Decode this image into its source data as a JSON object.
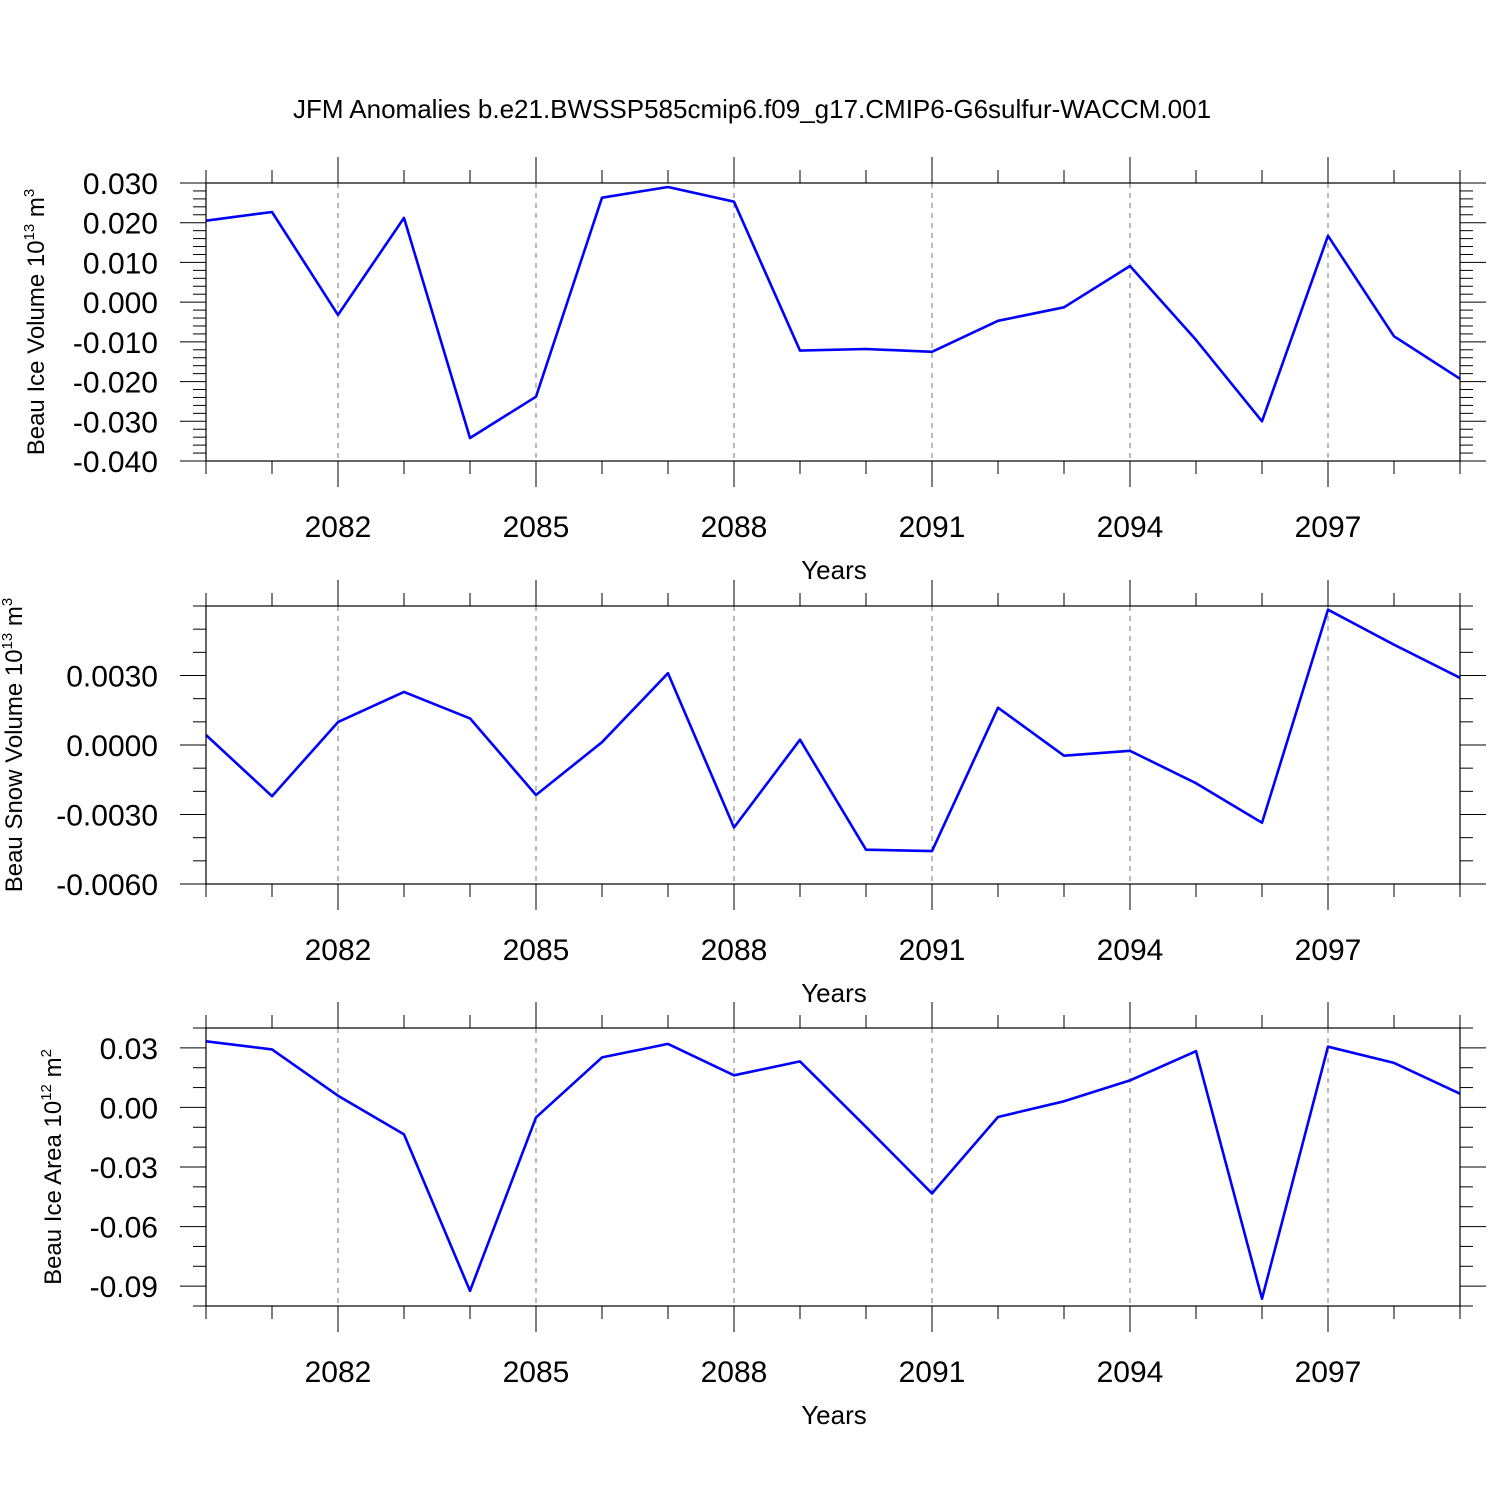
{
  "title": "JFM Anomalies b.e21.BWSSP585cmip6.f09_g17.CMIP6-G6sulfur-WACCM.001",
  "line_color": "#0000ff",
  "chart_data": [
    {
      "type": "line",
      "x": [
        2080,
        2081,
        2082,
        2083,
        2084,
        2085,
        2086,
        2087,
        2088,
        2089,
        2090,
        2091,
        2092,
        2093,
        2094,
        2095,
        2096,
        2097,
        2098,
        2099
      ],
      "values": [
        0.0205,
        0.0227,
        -0.0032,
        0.0212,
        -0.0342,
        -0.0238,
        0.0263,
        0.029,
        0.0253,
        -0.0122,
        -0.0118,
        -0.0125,
        -0.0047,
        -0.0013,
        0.0091,
        -0.0095,
        -0.03,
        0.0167,
        -0.0086,
        -0.0193
      ],
      "xlabel": "Years",
      "ylabel": "Beau Ice Volume 10",
      "ylabel_sup": "13",
      "ylabel_unit": "m",
      "ylabel_unit_sup": "3",
      "xlim": [
        2080,
        2099
      ],
      "ylim": [
        -0.04,
        0.03
      ],
      "yticks": [
        -0.04,
        -0.03,
        -0.02,
        -0.01,
        0.0,
        0.01,
        0.02,
        0.03
      ],
      "ytick_labels": [
        "-0.040",
        "-0.030",
        "-0.020",
        "-0.010",
        "0.000",
        "0.010",
        "0.020",
        "0.030"
      ],
      "yminor_step": 0.002,
      "xticks": [
        2082,
        2085,
        2088,
        2091,
        2094,
        2097
      ],
      "xtick_labels": [
        "2082",
        "2085",
        "2088",
        "2091",
        "2094",
        "2097"
      ],
      "grid": "vertical dashed at major x ticks"
    },
    {
      "type": "line",
      "x": [
        2080,
        2081,
        2082,
        2083,
        2084,
        2085,
        2086,
        2087,
        2088,
        2089,
        2090,
        2091,
        2092,
        2093,
        2094,
        2095,
        2096,
        2097,
        2098,
        2099
      ],
      "values": [
        0.00043,
        -0.00221,
        0.00099,
        0.00229,
        0.00115,
        -0.00216,
        0.00012,
        0.0031,
        -0.00356,
        0.00023,
        -0.00452,
        -0.00458,
        0.00161,
        -0.00046,
        -0.00025,
        -0.00165,
        -0.00336,
        0.00584,
        0.00433,
        0.0029
      ],
      "xlabel": "Years",
      "ylabel": "Beau Snow Volume 10",
      "ylabel_sup": "13",
      "ylabel_unit": "m",
      "ylabel_unit_sup": "3",
      "xlim": [
        2080,
        2099
      ],
      "ylim": [
        -0.006,
        0.006
      ],
      "yticks": [
        -0.006,
        -0.003,
        0.0,
        0.003
      ],
      "ytick_labels": [
        "-0.0060",
        "-0.0030",
        "0.0000",
        "0.0030"
      ],
      "yminor_step": 0.001,
      "xticks": [
        2082,
        2085,
        2088,
        2091,
        2094,
        2097
      ],
      "xtick_labels": [
        "2082",
        "2085",
        "2088",
        "2091",
        "2094",
        "2097"
      ],
      "grid": "vertical dashed at major x ticks"
    },
    {
      "type": "line",
      "x": [
        2080,
        2081,
        2082,
        2083,
        2084,
        2085,
        2086,
        2087,
        2088,
        2089,
        2090,
        2091,
        2092,
        2093,
        2094,
        2095,
        2096,
        2097,
        2098,
        2099
      ],
      "values": [
        0.0333,
        0.0292,
        0.0059,
        -0.0136,
        -0.0924,
        -0.005,
        0.0252,
        0.032,
        0.0162,
        0.0232,
        -0.0098,
        -0.0433,
        -0.0048,
        0.0031,
        0.0136,
        0.0283,
        -0.0963,
        0.0306,
        0.0224,
        0.0069
      ],
      "xlabel": "Years",
      "ylabel": "Beau Ice Area 10",
      "ylabel_sup": "12",
      "ylabel_unit": "m",
      "ylabel_unit_sup": "2",
      "xlim": [
        2080,
        2099
      ],
      "ylim": [
        -0.1,
        0.04
      ],
      "yticks": [
        -0.09,
        -0.06,
        -0.03,
        0.0,
        0.03
      ],
      "ytick_labels": [
        "-0.09",
        "-0.06",
        "-0.03",
        "0.00",
        "0.03"
      ],
      "yminor_step": 0.01,
      "xticks": [
        2082,
        2085,
        2088,
        2091,
        2094,
        2097
      ],
      "xtick_labels": [
        "2082",
        "2085",
        "2088",
        "2091",
        "2094",
        "2097"
      ],
      "grid": "vertical dashed at major x ticks"
    }
  ]
}
